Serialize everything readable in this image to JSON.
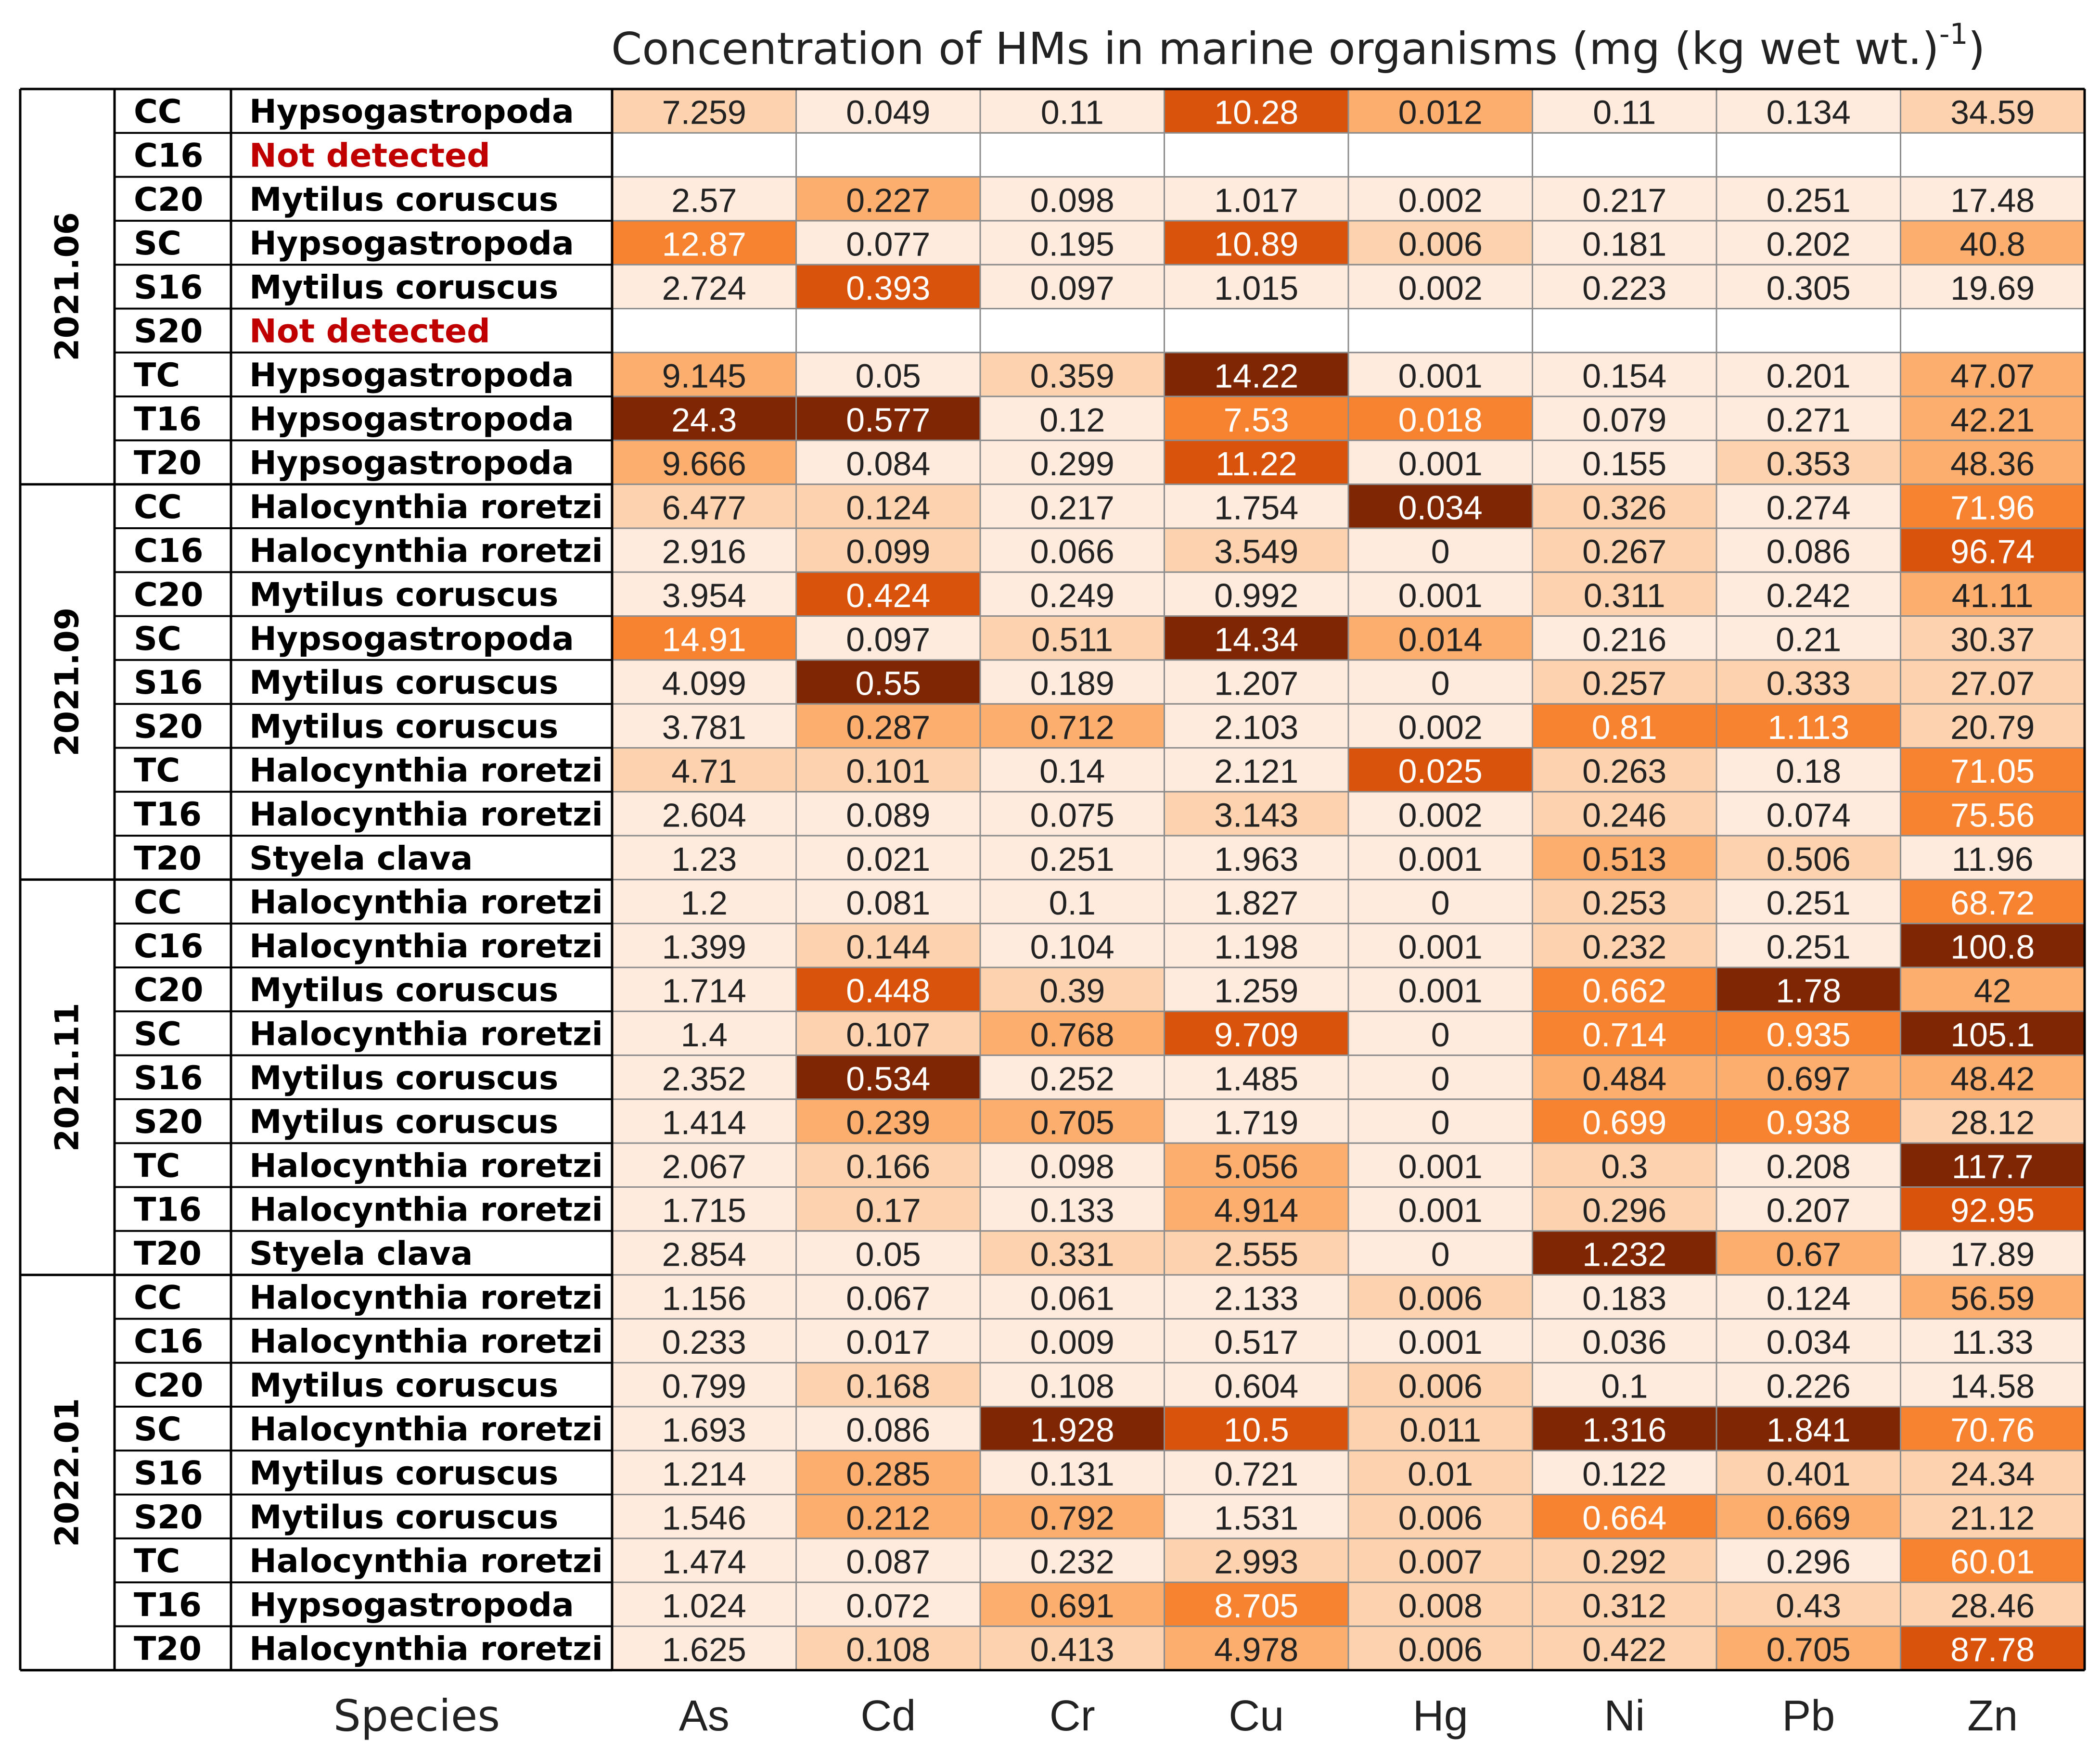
{
  "chart_data": {
    "type": "heatmap",
    "title_main": "Concentration of HMs in marine organisms (mg (kg wet wt.)",
    "title_superscript": "-1",
    "title_close": ")",
    "species_axis_label": "Species",
    "columns": [
      "As",
      "Cd",
      "Cr",
      "Cu",
      "Hg",
      "Ni",
      "Pb",
      "Zn"
    ],
    "colors": {
      "lightest": "#FEEBDD",
      "light": "#FDD3AF",
      "mid": "#FBAE6D",
      "orange": "#F7822F",
      "dark": "#D9530C",
      "darkest": "#7F2704",
      "not_detected_text": "#C00000"
    },
    "groups": [
      {
        "period": "2021.06",
        "rows": [
          {
            "site": "CC",
            "species": "Hypsogastropoda",
            "values": [
              "7.259",
              "0.049",
              "0.11",
              "10.28",
              "0.012",
              "0.11",
              "0.134",
              "34.59"
            ]
          },
          {
            "site": "C16",
            "species": "Not detected",
            "values": null
          },
          {
            "site": "C20",
            "species": "Mytilus coruscus",
            "values": [
              "2.57",
              "0.227",
              "0.098",
              "1.017",
              "0.002",
              "0.217",
              "0.251",
              "17.48"
            ]
          },
          {
            "site": "SC",
            "species": "Hypsogastropoda",
            "values": [
              "12.87",
              "0.077",
              "0.195",
              "10.89",
              "0.006",
              "0.181",
              "0.202",
              "40.8"
            ]
          },
          {
            "site": "S16",
            "species": "Mytilus coruscus",
            "values": [
              "2.724",
              "0.393",
              "0.097",
              "1.015",
              "0.002",
              "0.223",
              "0.305",
              "19.69"
            ]
          },
          {
            "site": "S20",
            "species": "Not detected",
            "values": null
          },
          {
            "site": "TC",
            "species": "Hypsogastropoda",
            "values": [
              "9.145",
              "0.05",
              "0.359",
              "14.22",
              "0.001",
              "0.154",
              "0.201",
              "47.07"
            ]
          },
          {
            "site": "T16",
            "species": "Hypsogastropoda",
            "values": [
              "24.3",
              "0.577",
              "0.12",
              "7.53",
              "0.018",
              "0.079",
              "0.271",
              "42.21"
            ]
          },
          {
            "site": "T20",
            "species": "Hypsogastropoda",
            "values": [
              "9.666",
              "0.084",
              "0.299",
              "11.22",
              "0.001",
              "0.155",
              "0.353",
              "48.36"
            ]
          }
        ]
      },
      {
        "period": "2021.09",
        "rows": [
          {
            "site": "CC",
            "species": "Halocynthia roretzi",
            "values": [
              "6.477",
              "0.124",
              "0.217",
              "1.754",
              "0.034",
              "0.326",
              "0.274",
              "71.96"
            ]
          },
          {
            "site": "C16",
            "species": "Halocynthia roretzi",
            "values": [
              "2.916",
              "0.099",
              "0.066",
              "3.549",
              "0",
              "0.267",
              "0.086",
              "96.74"
            ]
          },
          {
            "site": "C20",
            "species": "Mytilus coruscus",
            "values": [
              "3.954",
              "0.424",
              "0.249",
              "0.992",
              "0.001",
              "0.311",
              "0.242",
              "41.11"
            ]
          },
          {
            "site": "SC",
            "species": "Hypsogastropoda",
            "values": [
              "14.91",
              "0.097",
              "0.511",
              "14.34",
              "0.014",
              "0.216",
              "0.21",
              "30.37"
            ]
          },
          {
            "site": "S16",
            "species": "Mytilus coruscus",
            "values": [
              "4.099",
              "0.55",
              "0.189",
              "1.207",
              "0",
              "0.257",
              "0.333",
              "27.07"
            ]
          },
          {
            "site": "S20",
            "species": "Mytilus coruscus",
            "values": [
              "3.781",
              "0.287",
              "0.712",
              "2.103",
              "0.002",
              "0.81",
              "1.113",
              "20.79"
            ]
          },
          {
            "site": "TC",
            "species": "Halocynthia roretzi",
            "values": [
              "4.71",
              "0.101",
              "0.14",
              "2.121",
              "0.025",
              "0.263",
              "0.18",
              "71.05"
            ]
          },
          {
            "site": "T16",
            "species": "Halocynthia roretzi",
            "values": [
              "2.604",
              "0.089",
              "0.075",
              "3.143",
              "0.002",
              "0.246",
              "0.074",
              "75.56"
            ]
          },
          {
            "site": "T20",
            "species": "Styela clava",
            "values": [
              "1.23",
              "0.021",
              "0.251",
              "1.963",
              "0.001",
              "0.513",
              "0.506",
              "11.96"
            ]
          }
        ]
      },
      {
        "period": "2021.11",
        "rows": [
          {
            "site": "CC",
            "species": "Halocynthia roretzi",
            "values": [
              "1.2",
              "0.081",
              "0.1",
              "1.827",
              "0",
              "0.253",
              "0.251",
              "68.72"
            ]
          },
          {
            "site": "C16",
            "species": "Halocynthia roretzi",
            "values": [
              "1.399",
              "0.144",
              "0.104",
              "1.198",
              "0.001",
              "0.232",
              "0.251",
              "100.8"
            ]
          },
          {
            "site": "C20",
            "species": "Mytilus coruscus",
            "values": [
              "1.714",
              "0.448",
              "0.39",
              "1.259",
              "0.001",
              "0.662",
              "1.78",
              "42"
            ]
          },
          {
            "site": "SC",
            "species": "Halocynthia roretzi",
            "values": [
              "1.4",
              "0.107",
              "0.768",
              "9.709",
              "0",
              "0.714",
              "0.935",
              "105.1"
            ]
          },
          {
            "site": "S16",
            "species": "Mytilus coruscus",
            "values": [
              "2.352",
              "0.534",
              "0.252",
              "1.485",
              "0",
              "0.484",
              "0.697",
              "48.42"
            ]
          },
          {
            "site": "S20",
            "species": "Mytilus coruscus",
            "values": [
              "1.414",
              "0.239",
              "0.705",
              "1.719",
              "0",
              "0.699",
              "0.938",
              "28.12"
            ]
          },
          {
            "site": "TC",
            "species": "Halocynthia roretzi",
            "values": [
              "2.067",
              "0.166",
              "0.098",
              "5.056",
              "0.001",
              "0.3",
              "0.208",
              "117.7"
            ]
          },
          {
            "site": "T16",
            "species": "Halocynthia roretzi",
            "values": [
              "1.715",
              "0.17",
              "0.133",
              "4.914",
              "0.001",
              "0.296",
              "0.207",
              "92.95"
            ]
          },
          {
            "site": "T20",
            "species": "Styela clava",
            "values": [
              "2.854",
              "0.05",
              "0.331",
              "2.555",
              "0",
              "1.232",
              "0.67",
              "17.89"
            ]
          }
        ]
      },
      {
        "period": "2022.01",
        "rows": [
          {
            "site": "CC",
            "species": "Halocynthia roretzi",
            "values": [
              "1.156",
              "0.067",
              "0.061",
              "2.133",
              "0.006",
              "0.183",
              "0.124",
              "56.59"
            ]
          },
          {
            "site": "C16",
            "species": "Halocynthia roretzi",
            "values": [
              "0.233",
              "0.017",
              "0.009",
              "0.517",
              "0.001",
              "0.036",
              "0.034",
              "11.33"
            ]
          },
          {
            "site": "C20",
            "species": "Mytilus coruscus",
            "values": [
              "0.799",
              "0.168",
              "0.108",
              "0.604",
              "0.006",
              "0.1",
              "0.226",
              "14.58"
            ]
          },
          {
            "site": "SC",
            "species": "Halocynthia roretzi",
            "values": [
              "1.693",
              "0.086",
              "1.928",
              "10.5",
              "0.011",
              "1.316",
              "1.841",
              "70.76"
            ]
          },
          {
            "site": "S16",
            "species": "Mytilus coruscus",
            "values": [
              "1.214",
              "0.285",
              "0.131",
              "0.721",
              "0.01",
              "0.122",
              "0.401",
              "24.34"
            ]
          },
          {
            "site": "S20",
            "species": "Mytilus coruscus",
            "values": [
              "1.546",
              "0.212",
              "0.792",
              "1.531",
              "0.006",
              "0.664",
              "0.669",
              "21.12"
            ]
          },
          {
            "site": "TC",
            "species": "Halocynthia roretzi",
            "values": [
              "1.474",
              "0.087",
              "0.232",
              "2.993",
              "0.007",
              "0.292",
              "0.296",
              "60.01"
            ]
          },
          {
            "site": "T16",
            "species": "Hypsogastropoda",
            "values": [
              "1.024",
              "0.072",
              "0.691",
              "8.705",
              "0.008",
              "0.312",
              "0.43",
              "28.46"
            ]
          },
          {
            "site": "T20",
            "species": "Halocynthia roretzi",
            "values": [
              "1.625",
              "0.108",
              "0.413",
              "4.978",
              "0.006",
              "0.422",
              "0.705",
              "87.78"
            ]
          }
        ]
      }
    ]
  }
}
